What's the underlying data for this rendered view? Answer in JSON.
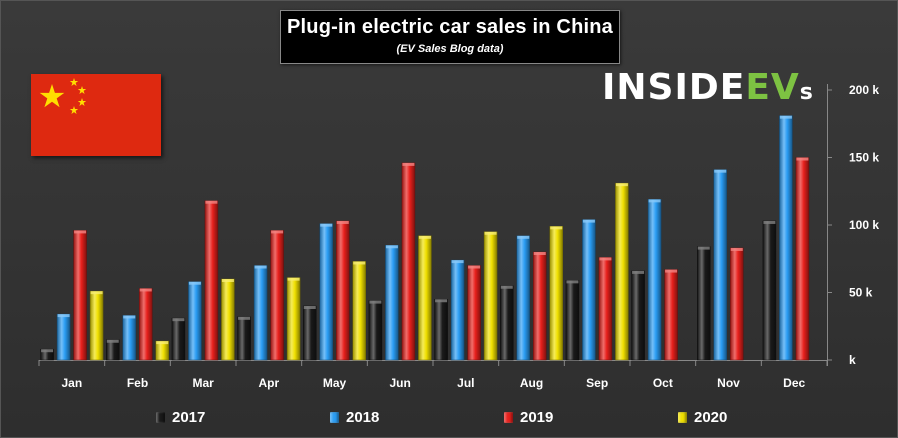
{
  "title": "Plug-in electric car sales in China",
  "subtitle": "(EV Sales Blog data)",
  "logo": {
    "main": "INSIDE",
    "accent": "EV",
    "suffix": "s"
  },
  "flag": {
    "name": "china-flag",
    "red": "#de2910",
    "yellow": "#ffde00"
  },
  "chart_data": {
    "type": "bar",
    "title": "Plug-in electric car sales in China",
    "subtitle": "(EV Sales Blog data)",
    "categories": [
      "Jan",
      "Feb",
      "Mar",
      "Apr",
      "May",
      "Jun",
      "Jul",
      "Aug",
      "Sep",
      "Oct",
      "Nov",
      "Dec"
    ],
    "series": [
      {
        "name": "2017",
        "color": "#1a1a1a",
        "values": [
          8,
          15,
          31,
          32,
          40,
          44,
          45,
          55,
          59,
          66,
          84,
          103
        ]
      },
      {
        "name": "2018",
        "color": "#2a9df4",
        "values": [
          34,
          33,
          58,
          70,
          101,
          85,
          74,
          92,
          104,
          119,
          141,
          181
        ]
      },
      {
        "name": "2019",
        "color": "#e8201c",
        "values": [
          96,
          53,
          118,
          96,
          103,
          146,
          70,
          80,
          76,
          67,
          83,
          150
        ]
      },
      {
        "name": "2020",
        "color": "#f0e000",
        "values": [
          51,
          14,
          60,
          61,
          73,
          92,
          95,
          99,
          131,
          null,
          null,
          null
        ]
      }
    ],
    "yticks": [
      {
        "value": 0,
        "label": "k"
      },
      {
        "value": 50,
        "label": "50 k"
      },
      {
        "value": 100,
        "label": "100 k"
      },
      {
        "value": 150,
        "label": "150 k"
      },
      {
        "value": 200,
        "label": "200 k"
      }
    ],
    "ylim": [
      0,
      200
    ],
    "grid": false,
    "legend": "bottom",
    "xlabel": "",
    "ylabel": ""
  }
}
